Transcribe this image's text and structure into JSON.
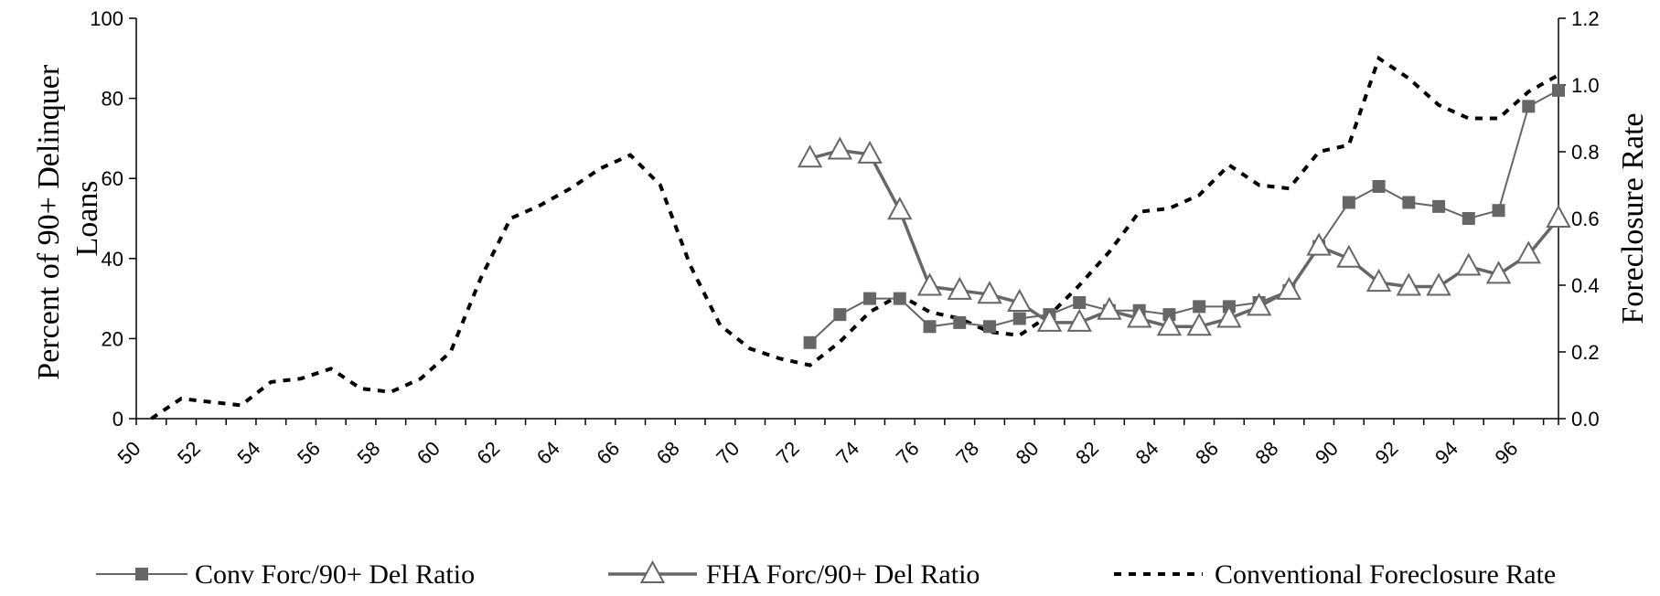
{
  "chart_data": {
    "type": "line",
    "title": "",
    "ylabel_left": "Percent of 90+ Delinquer Loans",
    "ylabel_left_lines": [
      "Percent of 90+ Delinquer",
      "Loans"
    ],
    "ylabel_right": "Foreclosure Rate",
    "ylim_left": [
      0,
      100
    ],
    "ylim_right": [
      0,
      1.2
    ],
    "yticks_left": [
      "0",
      "20",
      "40",
      "60",
      "80",
      "100"
    ],
    "yticks_right": [
      "0.0",
      "0.2",
      "0.4",
      "0.6",
      "0.8",
      "1.0",
      "1.2"
    ],
    "xlim": [
      50,
      97.5
    ],
    "xticks": [
      "50",
      "52",
      "54",
      "56",
      "58",
      "60",
      "62",
      "64",
      "66",
      "68",
      "70",
      "72",
      "74",
      "76",
      "78",
      "80",
      "82",
      "84",
      "86",
      "88",
      "90",
      "92",
      "94",
      "96"
    ],
    "grid": false,
    "legend_position": "bottom",
    "series": [
      {
        "name": "Conv Forc/90+ Del Ratio",
        "axis": "left",
        "color": "#666666",
        "marker": "square",
        "x": [
          72.5,
          73.5,
          74.5,
          75.5,
          76.5,
          77.5,
          78.5,
          79.5,
          80.5,
          81.5,
          82.5,
          83.5,
          84.5,
          85.5,
          86.5,
          87.5,
          88.5,
          89.5,
          90.5,
          91.5,
          92.5,
          93.5,
          94.5,
          95.5,
          96.5,
          97.5
        ],
        "values": [
          19,
          26,
          30,
          30,
          23,
          24,
          23,
          25,
          26,
          29,
          27,
          27,
          26,
          28,
          28,
          29,
          32,
          43,
          54,
          58,
          54,
          53,
          50,
          52,
          78,
          82
        ]
      },
      {
        "name": "FHA Forc/90+ Del Ratio",
        "axis": "left",
        "color": "#666666",
        "marker": "triangle",
        "x": [
          72.5,
          73.5,
          74.5,
          75.5,
          76.5,
          77.5,
          78.5,
          79.5,
          80.5,
          81.5,
          82.5,
          83.5,
          84.5,
          85.5,
          86.5,
          87.5,
          88.5,
          89.5,
          90.5,
          91.5,
          92.5,
          93.5,
          94.5,
          95.5,
          96.5,
          97.5
        ],
        "values": [
          65,
          67,
          66,
          52,
          33,
          32,
          31,
          29,
          24,
          24,
          27,
          25,
          23,
          23,
          25,
          28,
          32,
          43,
          40,
          34,
          33,
          33,
          38,
          36,
          41,
          50
        ]
      },
      {
        "name": "Conventional Foreclosure Rate",
        "axis": "right",
        "color": "#000000",
        "marker": "none",
        "dash": true,
        "x": [
          50.5,
          51.5,
          52.5,
          53.5,
          54.5,
          55.5,
          56.5,
          57.5,
          58.5,
          59.5,
          60.5,
          61.5,
          62.5,
          63.5,
          64.5,
          65.5,
          66.5,
          67.5,
          68.5,
          69.5,
          70.5,
          71.5,
          72.5,
          73.5,
          74.5,
          75.5,
          76.5,
          77.5,
          78.5,
          79.5,
          80.5,
          81.5,
          82.5,
          83.5,
          84.5,
          85.5,
          86.5,
          87.5,
          88.5,
          89.5,
          90.5,
          91.5,
          92.5,
          93.5,
          94.5,
          95.5,
          96.5,
          97.5
        ],
        "values": [
          0.0,
          0.06,
          0.05,
          0.04,
          0.11,
          0.12,
          0.15,
          0.09,
          0.08,
          0.12,
          0.2,
          0.42,
          0.6,
          0.64,
          0.69,
          0.75,
          0.79,
          0.7,
          0.46,
          0.28,
          0.21,
          0.18,
          0.16,
          0.23,
          0.32,
          0.37,
          0.32,
          0.3,
          0.26,
          0.25,
          0.31,
          0.4,
          0.5,
          0.62,
          0.63,
          0.67,
          0.76,
          0.7,
          0.69,
          0.8,
          0.82,
          1.08,
          1.02,
          0.94,
          0.9,
          0.9,
          0.98,
          1.03
        ]
      }
    ]
  }
}
